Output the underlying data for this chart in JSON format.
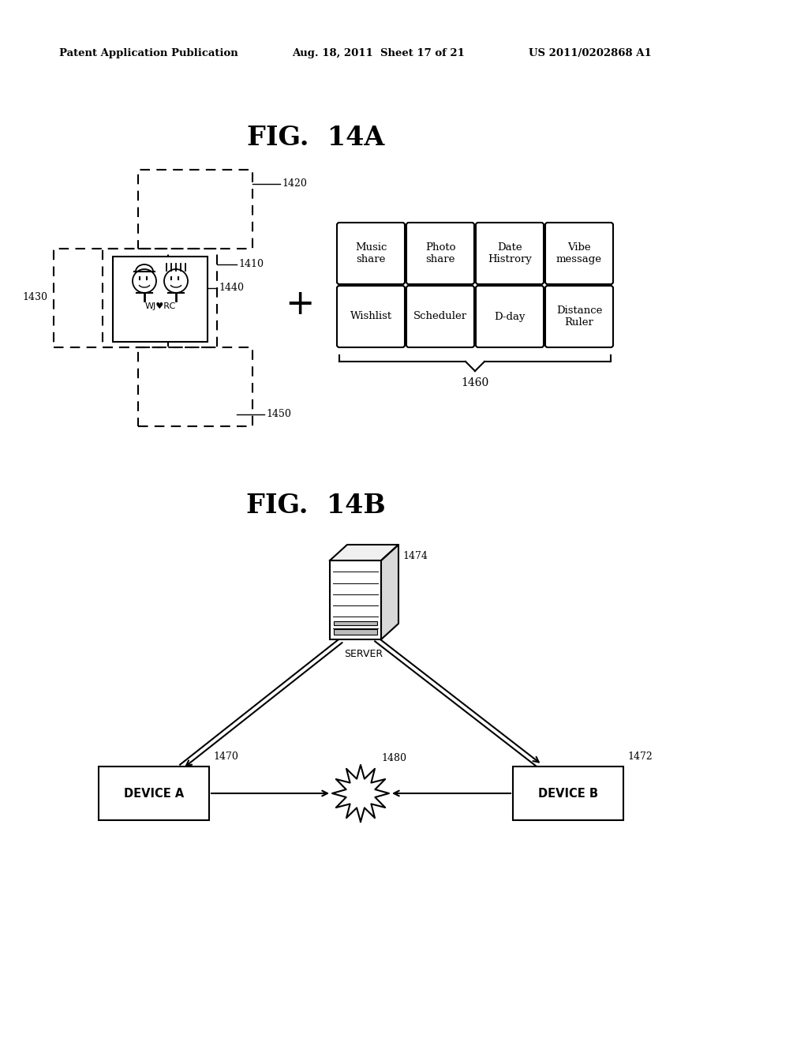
{
  "bg_color": "#ffffff",
  "header_left": "Patent Application Publication",
  "header_mid": "Aug. 18, 2011  Sheet 17 of 21",
  "header_right": "US 2011/0202868 A1",
  "fig14a_title": "FIG.  14A",
  "fig14b_title": "FIG.  14B",
  "grid_labels_row1": [
    "Music\nshare",
    "Photo\nshare",
    "Date\nHistrory",
    "Vibe\nmessage"
  ],
  "grid_labels_row2": [
    "Wishlist",
    "Scheduler",
    "D-day",
    "Distance\nRuler"
  ],
  "grid_label": "1460",
  "label_1420": "1420",
  "label_1410": "1410",
  "label_1440": "1440",
  "label_1430": "1430",
  "label_1450": "1450",
  "label_1474": "1474",
  "label_1470": "1470",
  "label_1480": "1480",
  "label_1472": "1472",
  "server_label": "SERVER",
  "device_a_label": "DEVICE A",
  "device_b_label": "DEVICE B",
  "wjrc_label": "WJ♥RC"
}
